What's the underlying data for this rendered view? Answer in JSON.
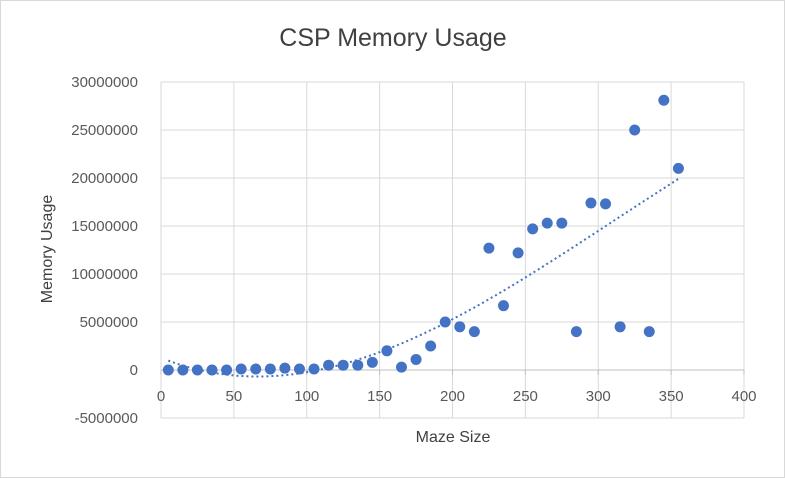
{
  "chart_data": {
    "type": "scatter",
    "title": "CSP Memory Usage",
    "xlabel": "Maze Size",
    "ylabel": "Memory Usage",
    "xlim": [
      0,
      400
    ],
    "ylim": [
      -5000000,
      30000000
    ],
    "x_ticks": [
      "0",
      "50",
      "100",
      "150",
      "200",
      "250",
      "300",
      "350",
      "400"
    ],
    "y_ticks": [
      "-5000000",
      "0",
      "5000000",
      "10000000",
      "15000000",
      "20000000",
      "25000000",
      "30000000"
    ],
    "grid": true,
    "legend": "none",
    "marker_color": "#4472c4",
    "trendline": {
      "type": "polynomial",
      "style": "dotted",
      "color": "#4472c4"
    },
    "series": [
      {
        "x": [
          5,
          15,
          25,
          35,
          45,
          55,
          65,
          75,
          85,
          95,
          105,
          115,
          125,
          135,
          145,
          155,
          165,
          175,
          185,
          195,
          205,
          215,
          225,
          235,
          245,
          255,
          265,
          275,
          285,
          295,
          305,
          315,
          325,
          335,
          345,
          355
        ],
        "y": [
          0,
          0,
          0,
          0,
          0,
          100000,
          100000,
          100000,
          200000,
          100000,
          100000,
          500000,
          500000,
          500000,
          800000,
          2000000,
          300000,
          1100000,
          2500000,
          5000000,
          4500000,
          4000000,
          12700000,
          6700000,
          12200000,
          14700000,
          15300000,
          15300000,
          4000000,
          17400000,
          17300000,
          4500000,
          25000000,
          4000000,
          28100000,
          21000000
        ]
      }
    ]
  }
}
